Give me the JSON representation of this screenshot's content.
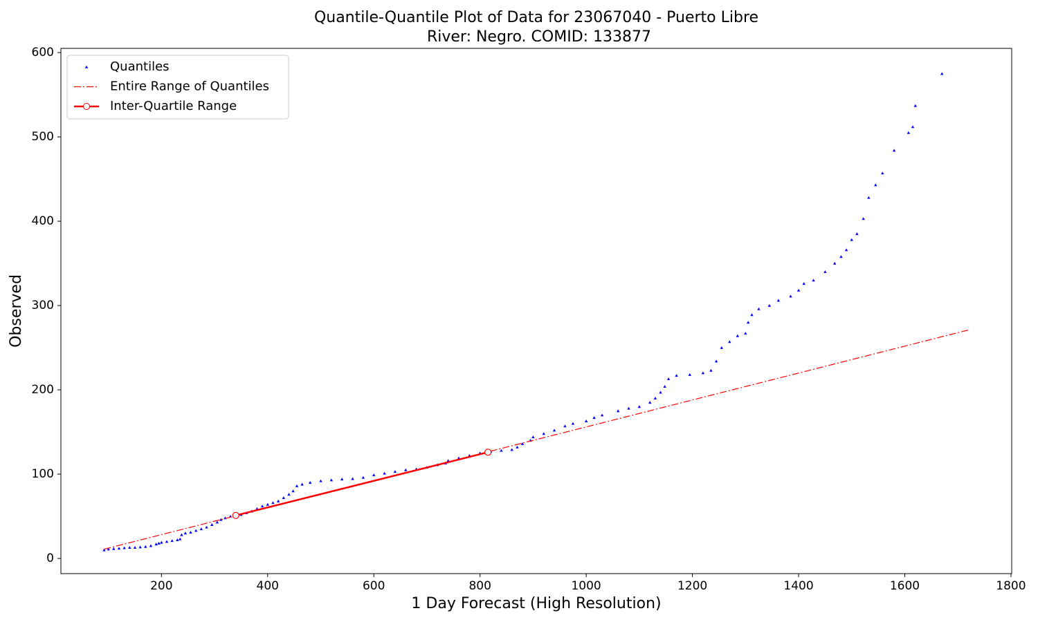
{
  "chart_data": {
    "type": "scatter",
    "title": "Quantile-Quantile Plot of Data for 23067040 - Puerto Libre",
    "subtitle": "River: Negro. COMID: 133877",
    "xlabel": "1 Day Forecast (High Resolution)",
    "ylabel": "Observed",
    "xlim": [
      10.6,
      1801.4
    ],
    "ylim": [
      -18,
      605
    ],
    "xticks": [
      200,
      400,
      600,
      800,
      1000,
      1200,
      1400,
      1600,
      1800
    ],
    "yticks": [
      0,
      100,
      200,
      300,
      400,
      500,
      600
    ],
    "legend": "upper left",
    "series": [
      {
        "name": "Quantiles",
        "color": "#0000ff",
        "style": "markers",
        "x": [
          92,
          100,
          110,
          120,
          130,
          140,
          150,
          160,
          170,
          180,
          190,
          195,
          200,
          210,
          220,
          230,
          235,
          238,
          245,
          255,
          265,
          275,
          285,
          295,
          305,
          312,
          320,
          330,
          340,
          350,
          360,
          370,
          380,
          390,
          400,
          410,
          420,
          430,
          440,
          448,
          455,
          465,
          480,
          500,
          520,
          540,
          560,
          580,
          600,
          620,
          640,
          660,
          680,
          700,
          720,
          735,
          740,
          760,
          780,
          800,
          820,
          840,
          860,
          870,
          880,
          895,
          900,
          920,
          940,
          960,
          975,
          1000,
          1015,
          1030,
          1060,
          1080,
          1100,
          1120,
          1130,
          1140,
          1148,
          1155,
          1170,
          1195,
          1220,
          1235,
          1245,
          1255,
          1270,
          1285,
          1300,
          1305,
          1312,
          1325,
          1345,
          1362,
          1385,
          1400,
          1410,
          1428,
          1450,
          1468,
          1480,
          1490,
          1500,
          1510,
          1522,
          1532,
          1545,
          1558,
          1580,
          1607,
          1615,
          1620,
          1670
        ],
        "values": [
          10,
          11,
          11.5,
          12,
          12.5,
          13,
          13,
          13.5,
          14,
          15,
          17,
          18,
          19,
          20,
          21,
          22,
          23,
          28,
          30,
          31,
          33,
          35,
          37,
          40,
          43,
          46,
          48,
          50,
          51,
          52,
          54,
          56,
          59,
          62,
          64,
          66,
          68,
          72,
          76,
          80,
          86,
          88,
          90,
          92,
          93,
          94,
          94.5,
          96,
          99,
          101,
          103,
          105,
          106,
          108,
          111,
          113,
          116,
          119,
          122,
          125,
          127,
          128,
          129,
          132,
          136,
          140,
          144,
          148,
          152,
          157,
          160,
          163,
          167,
          170,
          175,
          178,
          180,
          185,
          190,
          197,
          204,
          213,
          217,
          218,
          220,
          223,
          234,
          250,
          257,
          264,
          267,
          280,
          289,
          296,
          300,
          306,
          311,
          318,
          326,
          330,
          340,
          350,
          358,
          366,
          378,
          385,
          403,
          428,
          443,
          457,
          484,
          505,
          512,
          537,
          575
        ]
      },
      {
        "name": "Entire Range of Quantiles",
        "color": "#ff0000",
        "style": "dashdot",
        "x": [
          92,
          1720
        ],
        "values": [
          11,
          271
        ]
      },
      {
        "name": "Inter-Quartile Range",
        "color": "#ff0000",
        "style": "line-circle",
        "x": [
          340,
          815
        ],
        "values": [
          51,
          126
        ]
      }
    ]
  }
}
